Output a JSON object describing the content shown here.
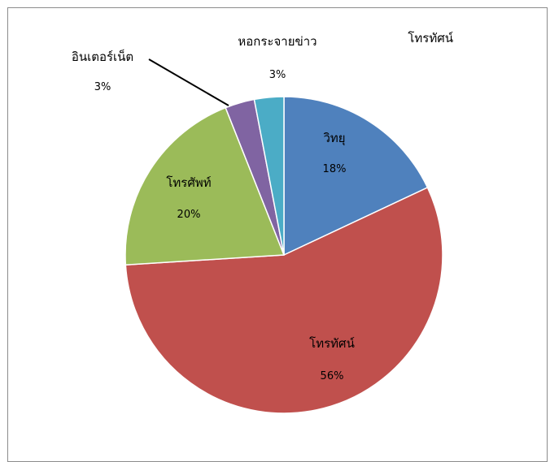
{
  "chart_data": {
    "type": "pie",
    "title": "",
    "legend": "โทรทัศน์",
    "slices": [
      {
        "label": "วิทยุ",
        "value": 18,
        "display": "18%",
        "color": "#4f81bd"
      },
      {
        "label": "โทรทัศน์",
        "value": 56,
        "display": "56%",
        "color": "#c0504d"
      },
      {
        "label": "โทรศัพท์",
        "value": 20,
        "display": "20%",
        "color": "#9bbb59"
      },
      {
        "label": "อินเตอร์เน็ต",
        "value": 3,
        "display": "3%",
        "color": "#8064a2"
      },
      {
        "label": "หอกระจายข่าว",
        "value": 3,
        "display": "3%",
        "color": "#4bacc6"
      }
    ]
  }
}
